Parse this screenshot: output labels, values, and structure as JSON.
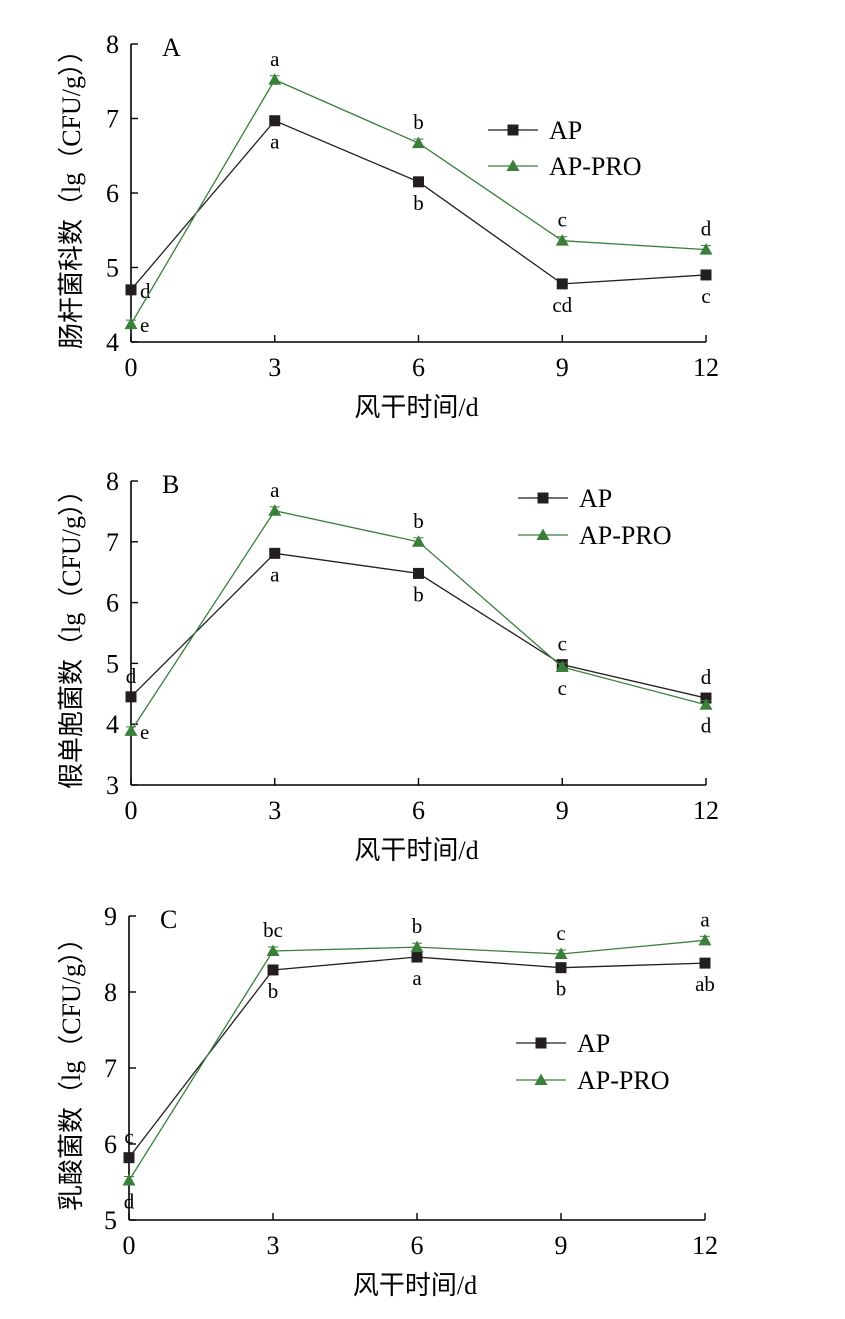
{
  "chart_data": [
    {
      "type": "line",
      "panel": "A",
      "x": [
        0,
        3,
        6,
        9,
        12
      ],
      "xticks": [
        "0",
        "3",
        "6",
        "9",
        "12"
      ],
      "yticks": [
        "4",
        "5",
        "6",
        "7",
        "8"
      ],
      "xlim": [
        0,
        12
      ],
      "ylim": [
        4,
        8
      ],
      "xlabel": "风干时间/d",
      "ylabel": "肠杆菌科数（lg（CFU/g））",
      "legend_position": "top-right",
      "series": [
        {
          "name": "AP",
          "values": [
            4.7,
            6.97,
            6.15,
            4.78,
            4.9
          ],
          "labels": [
            "d",
            "a",
            "b",
            "cd",
            "c"
          ],
          "label_pos": [
            "right",
            "below",
            "below",
            "below",
            "below"
          ],
          "color": "#231f20",
          "marker": "square"
        },
        {
          "name": "AP-PRO",
          "values": [
            4.24,
            7.52,
            6.67,
            5.36,
            5.24
          ],
          "labels": [
            "e",
            "a",
            "b",
            "c",
            "d"
          ],
          "label_pos": [
            "right",
            "above",
            "above",
            "above",
            "above"
          ],
          "color": "#3a7f3a",
          "marker": "triangle"
        }
      ]
    },
    {
      "type": "line",
      "panel": "B",
      "x": [
        0,
        3,
        6,
        9,
        12
      ],
      "xticks": [
        "0",
        "3",
        "6",
        "9",
        "12"
      ],
      "yticks": [
        "3",
        "4",
        "5",
        "6",
        "7",
        "8"
      ],
      "xlim": [
        0,
        12
      ],
      "ylim": [
        3,
        8
      ],
      "xlabel": "风干时间/d",
      "ylabel": "假单胞菌数（lg（CFU/g））",
      "legend_position": "top-right",
      "series": [
        {
          "name": "AP",
          "values": [
            4.45,
            6.81,
            6.48,
            4.98,
            4.43
          ],
          "labels": [
            "d",
            "a",
            "b",
            "c",
            "d"
          ],
          "label_pos": [
            "above",
            "below",
            "below",
            "above",
            "above"
          ],
          "color": "#231f20",
          "marker": "square"
        },
        {
          "name": "AP-PRO",
          "values": [
            3.89,
            7.51,
            7.0,
            4.94,
            4.32
          ],
          "labels": [
            "e",
            "a",
            "b",
            "c",
            "d"
          ],
          "label_pos": [
            "right",
            "above",
            "above",
            "below",
            "below"
          ],
          "color": "#3a7f3a",
          "marker": "triangle"
        }
      ]
    },
    {
      "type": "line",
      "panel": "C",
      "x": [
        0,
        3,
        6,
        9,
        12
      ],
      "xticks": [
        "0",
        "3",
        "6",
        "9",
        "12"
      ],
      "yticks": [
        "5",
        "6",
        "7",
        "8",
        "9"
      ],
      "xlim": [
        0,
        12
      ],
      "ylim": [
        5,
        9
      ],
      "xlabel": "风干时间/d",
      "ylabel": "乳酸菌数（lg（CFU/g））",
      "legend_position": "center-right",
      "series": [
        {
          "name": "AP",
          "values": [
            5.82,
            8.29,
            8.46,
            8.32,
            8.38
          ],
          "labels": [
            "c",
            "b",
            "a",
            "b",
            "ab"
          ],
          "label_pos": [
            "above",
            "below",
            "below",
            "below",
            "below"
          ],
          "color": "#231f20",
          "marker": "square"
        },
        {
          "name": "AP-PRO",
          "values": [
            5.52,
            8.54,
            8.59,
            8.5,
            8.68
          ],
          "labels": [
            "d",
            "bc",
            "b",
            "c",
            "a"
          ],
          "label_pos": [
            "below",
            "above",
            "above",
            "above",
            "above"
          ],
          "color": "#3a7f3a",
          "marker": "triangle"
        }
      ]
    }
  ]
}
